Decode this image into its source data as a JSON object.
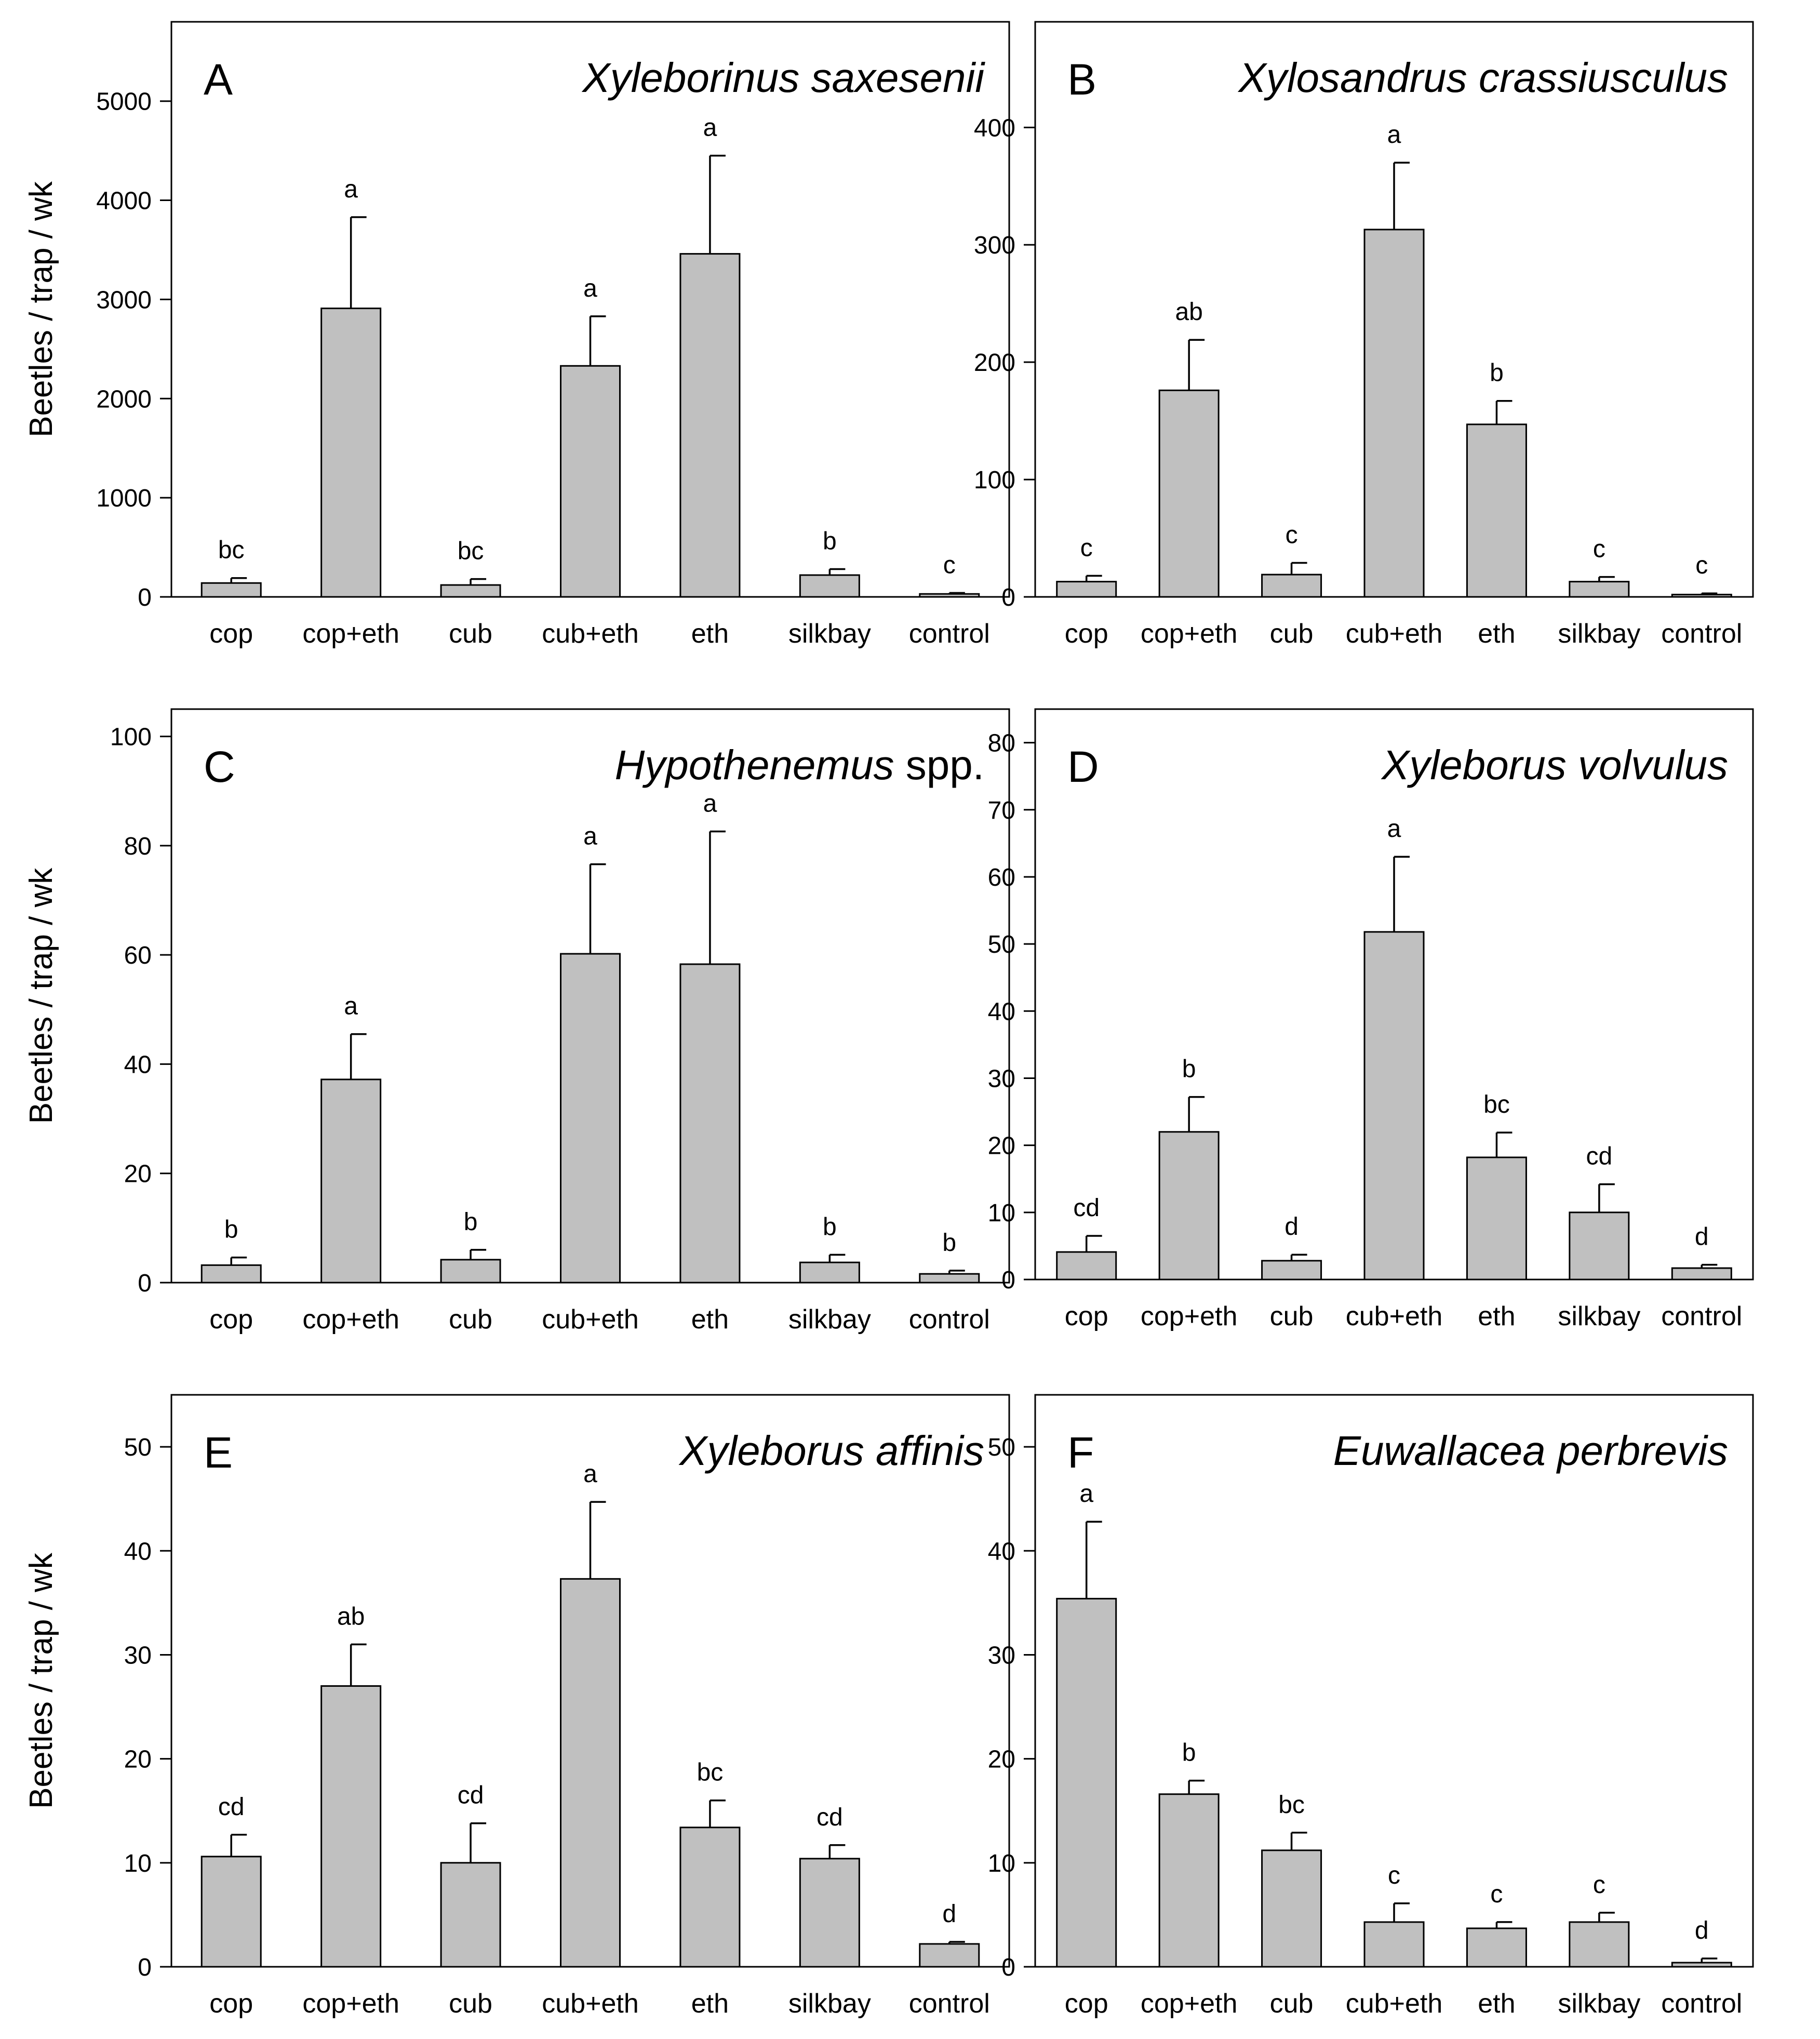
{
  "figure": {
    "categories": [
      "cop",
      "cop+eth",
      "cub",
      "cub+eth",
      "eth",
      "silkbay",
      "control"
    ],
    "bar_color": "#c0c0c0"
  },
  "chart_data": [
    {
      "type": "bar",
      "panel": "A",
      "title": "Xyleborinus saxesenii",
      "title_italic": true,
      "ylabel": "Beetles / trap / wk",
      "ylabel_visible": true,
      "categories": [
        "cop",
        "cop+eth",
        "cub",
        "cub+eth",
        "eth",
        "silkbay",
        "control"
      ],
      "values": [
        140,
        2910,
        120,
        2330,
        3460,
        220,
        30
      ],
      "errors": [
        50,
        920,
        60,
        500,
        990,
        60,
        10
      ],
      "letters": [
        "bc",
        "a",
        "bc",
        "a",
        "a",
        "b",
        "c"
      ],
      "ylim": [
        0,
        5800
      ],
      "yticks": [
        0,
        1000,
        2000,
        3000,
        4000,
        5000
      ],
      "ytick_labels": [
        "0",
        "1000",
        "2000",
        "3000",
        "4000",
        "5000"
      ]
    },
    {
      "type": "bar",
      "panel": "B",
      "title": "Xylosandrus crassiusculus",
      "title_italic": true,
      "ylabel": "",
      "ylabel_visible": false,
      "categories": [
        "cop",
        "cop+eth",
        "cub",
        "cub+eth",
        "eth",
        "silkbay",
        "control"
      ],
      "values": [
        13,
        176,
        19,
        313,
        147,
        13,
        2
      ],
      "errors": [
        5,
        43,
        10,
        57,
        20,
        4,
        1
      ],
      "letters": [
        "c",
        "ab",
        "c",
        "a",
        "b",
        "c",
        "c"
      ],
      "ylim": [
        0,
        490
      ],
      "yticks": [
        0,
        100,
        200,
        300,
        400
      ],
      "ytick_labels": [
        "0",
        "100",
        "200",
        "300",
        "400"
      ]
    },
    {
      "type": "bar",
      "panel": "C",
      "title": "Hypothenemus",
      "title_suffix": " spp.",
      "title_italic": true,
      "ylabel": "Beetles / trap / wk",
      "ylabel_visible": true,
      "categories": [
        "cop",
        "cop+eth",
        "cub",
        "cub+eth",
        "eth",
        "silkbay",
        "control"
      ],
      "values": [
        3.2,
        37.2,
        4.2,
        60.2,
        58.3,
        3.7,
        1.6
      ],
      "errors": [
        1.4,
        8.3,
        1.8,
        16.4,
        24.3,
        1.4,
        0.6
      ],
      "letters": [
        "b",
        "a",
        "b",
        "a",
        "a",
        "b",
        "b"
      ],
      "ylim": [
        0,
        105
      ],
      "yticks": [
        0,
        20,
        40,
        60,
        80,
        100
      ],
      "ytick_labels": [
        "0",
        "20",
        "40",
        "60",
        "80",
        "100"
      ]
    },
    {
      "type": "bar",
      "panel": "D",
      "title": "Xyleborus volvulus",
      "title_italic": true,
      "ylabel": "",
      "ylabel_visible": false,
      "categories": [
        "cop",
        "cop+eth",
        "cub",
        "cub+eth",
        "eth",
        "silkbay",
        "control"
      ],
      "values": [
        4.1,
        22.0,
        2.8,
        51.8,
        18.2,
        10.0,
        1.7
      ],
      "errors": [
        2.4,
        5.2,
        0.9,
        11.2,
        3.7,
        4.2,
        0.5
      ],
      "letters": [
        "cd",
        "b",
        "d",
        "a",
        "bc",
        "cd",
        "d"
      ],
      "ylim": [
        0,
        85
      ],
      "yticks": [
        0,
        10,
        20,
        30,
        40,
        50,
        60,
        70,
        80
      ],
      "ytick_labels": [
        "0",
        "10",
        "20",
        "30",
        "40",
        "50",
        "60",
        "70",
        "80"
      ]
    },
    {
      "type": "bar",
      "panel": "E",
      "title": "Xyleborus affinis",
      "title_italic": true,
      "ylabel": "Beetles / trap / wk",
      "ylabel_visible": true,
      "categories": [
        "cop",
        "cop+eth",
        "cub",
        "cub+eth",
        "eth",
        "silkbay",
        "control"
      ],
      "values": [
        10.6,
        27.0,
        10.0,
        37.3,
        13.4,
        10.4,
        2.2
      ],
      "errors": [
        2.1,
        4.0,
        3.8,
        7.4,
        2.6,
        1.3,
        0.2
      ],
      "letters": [
        "cd",
        "ab",
        "cd",
        "a",
        "bc",
        "cd",
        "d"
      ],
      "ylim": [
        0,
        55
      ],
      "yticks": [
        0,
        10,
        20,
        30,
        40,
        50
      ],
      "ytick_labels": [
        "0",
        "10",
        "20",
        "30",
        "40",
        "50"
      ]
    },
    {
      "type": "bar",
      "panel": "F",
      "title": "Euwallacea perbrevis",
      "title_italic": true,
      "ylabel": "",
      "ylabel_visible": false,
      "categories": [
        "cop",
        "cop+eth",
        "cub",
        "cub+eth",
        "eth",
        "silkbay",
        "control"
      ],
      "values": [
        35.4,
        16.6,
        11.2,
        4.3,
        3.7,
        4.3,
        0.4
      ],
      "errors": [
        7.4,
        1.3,
        1.7,
        1.8,
        0.6,
        0.9,
        0.4
      ],
      "letters": [
        "a",
        "b",
        "bc",
        "c",
        "c",
        "c",
        "d"
      ],
      "ylim": [
        0,
        55
      ],
      "yticks": [
        0,
        10,
        20,
        30,
        40,
        50
      ],
      "ytick_labels": [
        "0",
        "10",
        "20",
        "30",
        "40",
        "50"
      ]
    }
  ]
}
